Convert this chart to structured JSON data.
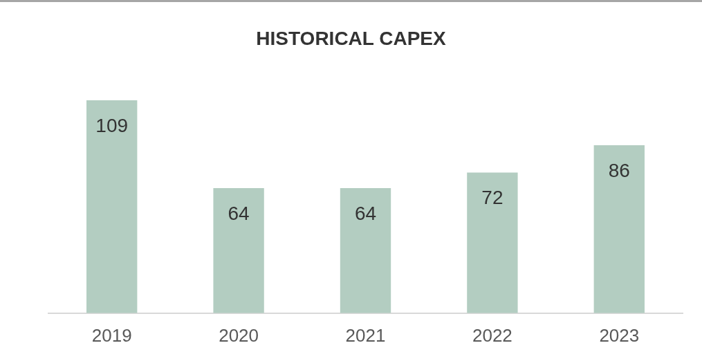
{
  "chart_data": {
    "type": "bar",
    "title": "HISTORICAL CAPEX",
    "categories": [
      "2019",
      "2020",
      "2021",
      "2022",
      "2023"
    ],
    "values": [
      109,
      64,
      64,
      72,
      86
    ],
    "color": "#b3cdc1",
    "data_labels": true,
    "grid": false,
    "legend": false
  }
}
